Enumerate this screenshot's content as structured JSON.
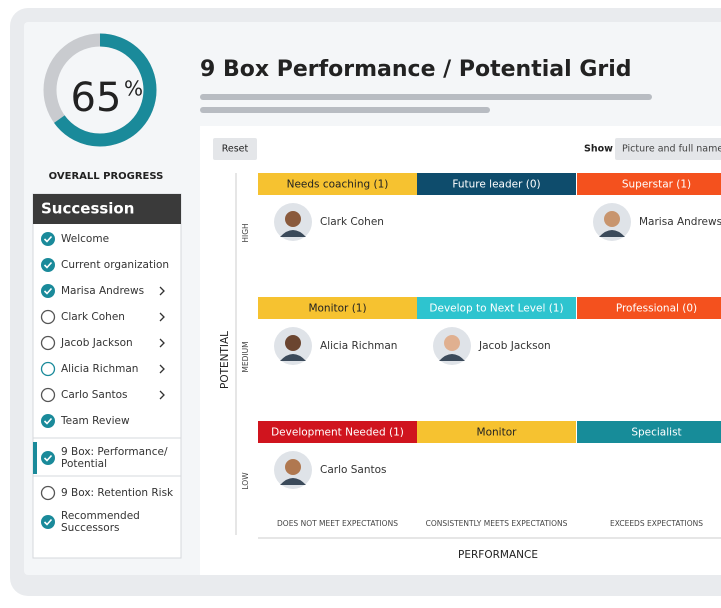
{
  "progress": {
    "value": 65,
    "unit": "%",
    "caption": "OVERALL PROGRESS"
  },
  "sidebar": {
    "title": "Succession",
    "items": [
      {
        "lines": [
          "Welcome"
        ],
        "status": "done",
        "chevron": false
      },
      {
        "lines": [
          "Current organization"
        ],
        "status": "done",
        "chevron": false
      },
      {
        "lines": [
          "Marisa Andrews"
        ],
        "status": "done",
        "chevron": true
      },
      {
        "lines": [
          "Clark Cohen"
        ],
        "status": "todo",
        "chevron": true
      },
      {
        "lines": [
          "Jacob Jackson"
        ],
        "status": "todo",
        "chevron": true
      },
      {
        "lines": [
          "Alicia Richman"
        ],
        "status": "partial",
        "chevron": true
      },
      {
        "lines": [
          "Carlo Santos"
        ],
        "status": "todo",
        "chevron": true
      },
      {
        "lines": [
          "Team Review"
        ],
        "status": "done",
        "chevron": false
      },
      {
        "lines": [
          "9 Box: Performance/",
          "Potential"
        ],
        "status": "done",
        "chevron": false,
        "active": true
      },
      {
        "lines": [
          "9 Box: Retention Risk"
        ],
        "status": "todo",
        "chevron": false
      },
      {
        "lines": [
          "Recommended",
          "Successors"
        ],
        "status": "done",
        "chevron": false
      }
    ]
  },
  "header": {
    "title": "9 Box Performance / Potential Grid"
  },
  "toolbar": {
    "reset": "Reset",
    "show_label": "Show",
    "show_value": "Picture and full name"
  },
  "grid": {
    "y_axis": "POTENTIAL",
    "x_axis": "PERFORMANCE",
    "columns": [
      "DOES NOT MEET EXPECTATIONS",
      "CONSISTENTLY MEETS EXPECTATIONS",
      "EXCEEDS EXPECTATIONS"
    ],
    "rows": [
      {
        "label": "HIGH",
        "boxes": [
          {
            "title": "Needs coaching (1)",
            "color": "#f6c230",
            "people": [
              "Clark Cohen"
            ]
          },
          {
            "title": "Future leader (0)",
            "color": "#0e4c6c",
            "people": []
          },
          {
            "title": "Superstar (1)",
            "color": "#f4511e",
            "people": [
              "Marisa Andrews"
            ]
          }
        ]
      },
      {
        "label": "MEDIUM",
        "boxes": [
          {
            "title": "Monitor (1)",
            "color": "#f6c230",
            "people": [
              "Alicia Richman"
            ]
          },
          {
            "title": "Develop to Next Level (1)",
            "color": "#2ec4cf",
            "people": [
              "Jacob Jackson"
            ]
          },
          {
            "title": "Professional (0)",
            "color": "#f4511e",
            "people": []
          }
        ]
      },
      {
        "label": "LOW",
        "boxes": [
          {
            "title": "Development Needed (1)",
            "color": "#d0141e",
            "people": [
              "Carlo Santos"
            ]
          },
          {
            "title": "Monitor",
            "color": "#f6c230",
            "people": []
          },
          {
            "title": "Specialist",
            "color": "#178c99",
            "people": []
          }
        ]
      }
    ]
  }
}
